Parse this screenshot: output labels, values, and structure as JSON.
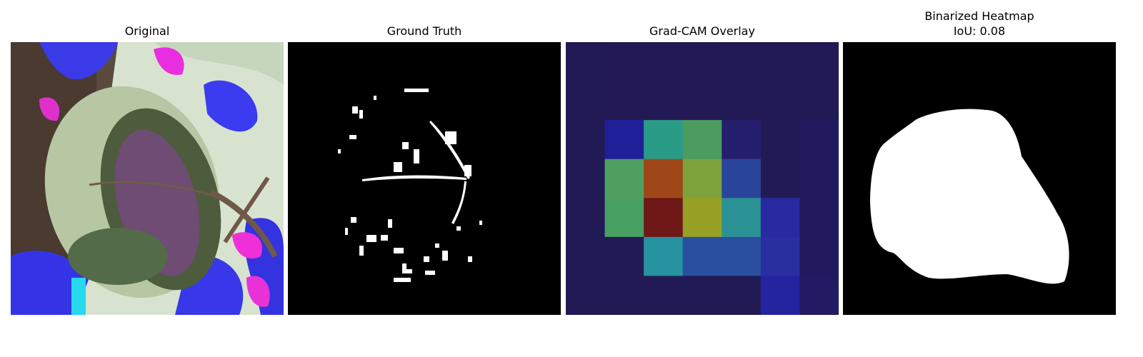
{
  "panels": [
    {
      "title": "Original",
      "subtitle": ""
    },
    {
      "title": "Ground Truth",
      "subtitle": ""
    },
    {
      "title": "Grad-CAM Overlay",
      "subtitle": ""
    },
    {
      "title": "Binarized Heatmap",
      "subtitle": "IoU: 0.08"
    }
  ],
  "colors": {
    "background": "#ffffff",
    "mask_bg": "#000000",
    "mask_fg": "#ffffff",
    "overlay_base": "#221a55"
  },
  "heatmap": {
    "rows": 7,
    "cols": 7,
    "colors": [
      [
        "#221a55",
        "#231a55",
        "#231a55",
        "#231a55",
        "#221a55",
        "#221a55",
        "#221a55"
      ],
      [
        "#221a55",
        "#231a55",
        "#231a55",
        "#231a55",
        "#221a55",
        "#221a55",
        "#221a55"
      ],
      [
        "#221a55",
        "#1f1f9a",
        "#2a9b86",
        "#4c9c60",
        "#251e6f",
        "#221a55",
        "#221a5e"
      ],
      [
        "#221a55",
        "#4fa060",
        "#9f4718",
        "#7ea33c",
        "#29459b",
        "#221a55",
        "#221a5e"
      ],
      [
        "#221a55",
        "#48a062",
        "#6e1818",
        "#97a024",
        "#2a9194",
        "#272aa0",
        "#221a5e"
      ],
      [
        "#221a55",
        "#221a55",
        "#2692a0",
        "#2a4fa0",
        "#2a4fa0",
        "#2a2fa0",
        "#221a5e"
      ],
      [
        "#221a55",
        "#221a55",
        "#221a55",
        "#221a55",
        "#221a55",
        "#2424a0",
        "#221a62"
      ]
    ]
  }
}
